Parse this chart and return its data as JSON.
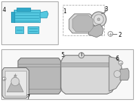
{
  "bg": "#ffffff",
  "box_edge": "#aaaaaa",
  "blue": "#55c8e0",
  "blue_dark": "#1a8aaa",
  "blue_mid": "#30a8c8",
  "gray_lt": "#d8d8d8",
  "gray_md": "#b8b8b8",
  "gray_dk": "#888888",
  "gray_vdk": "#666666",
  "stroke": "#555555",
  "lbl4": "4",
  "lbl1": "1",
  "lbl2": "2",
  "lbl3": "3",
  "lbl5": "5",
  "lbl6": "6",
  "lbl7": "7"
}
